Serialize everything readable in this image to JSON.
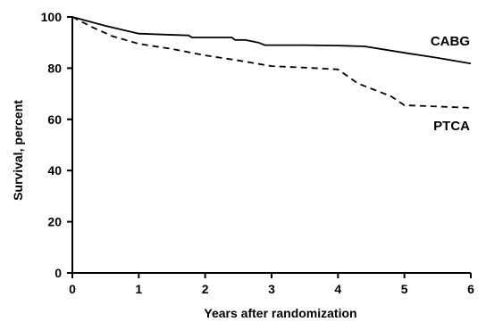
{
  "chart_data": {
    "type": "line",
    "title": "",
    "xlabel": "Years after randomization",
    "ylabel": "Survival, percent",
    "xlim": [
      0,
      6
    ],
    "ylim": [
      0,
      100
    ],
    "xticks": [
      0,
      1,
      2,
      3,
      4,
      5,
      6
    ],
    "yticks": [
      0,
      20,
      40,
      60,
      80,
      100
    ],
    "grid": false,
    "legend": "inline labels at right end of lines",
    "series": [
      {
        "name": "CABG",
        "style": "solid",
        "color": "#000000",
        "x": [
          0,
          0.5,
          1.0,
          1.4,
          1.75,
          1.8,
          2.0,
          2.2,
          2.4,
          2.45,
          2.6,
          2.8,
          2.9,
          3.0,
          3.5,
          4.0,
          4.4,
          5.0,
          5.5,
          6.0
        ],
        "y": [
          100,
          96.5,
          93.5,
          93.1,
          92.8,
          92.0,
          92.0,
          92.0,
          92.0,
          91.0,
          91.0,
          90.0,
          89.0,
          89.0,
          89.0,
          88.8,
          88.5,
          86.0,
          84.0,
          81.8
        ]
      },
      {
        "name": "PTCA",
        "style": "dashed",
        "color": "#000000",
        "x": [
          0,
          0.3,
          0.6,
          1.0,
          1.5,
          2.0,
          2.5,
          3.0,
          3.5,
          4.0,
          4.3,
          4.6,
          4.8,
          5.0,
          5.5,
          6.0
        ],
        "y": [
          100,
          96,
          92.5,
          89.5,
          87.5,
          85,
          83,
          80.8,
          80.2,
          79.5,
          74,
          71,
          69,
          65.5,
          65,
          64.5
        ]
      }
    ]
  }
}
